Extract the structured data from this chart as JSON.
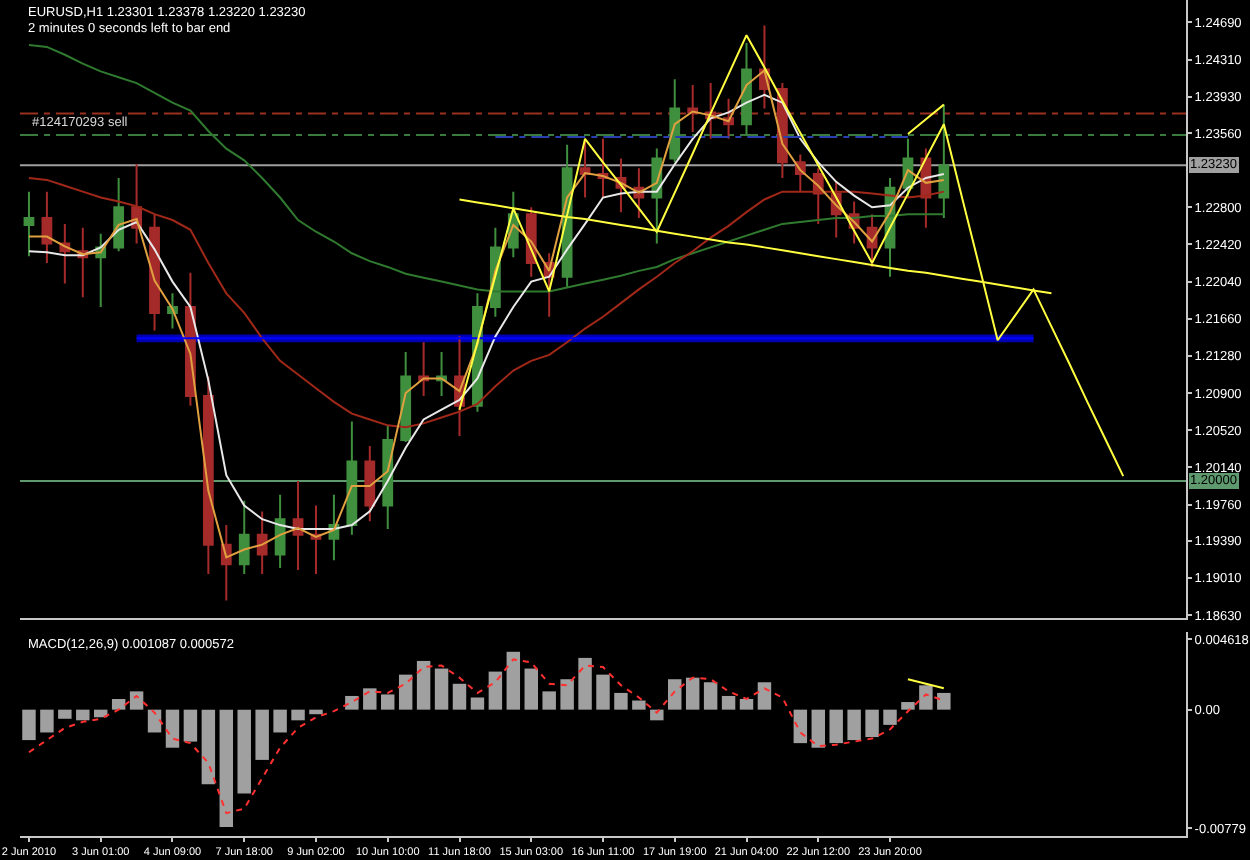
{
  "chart_data": [
    {
      "type": "candlestick",
      "title": "EURUSD,H1 1.23301 1.23378 1.23220 1.23230",
      "annotations": [
        "2 minutes 0 seconds left to bar end"
      ],
      "categories": [
        null,
        null,
        null,
        null,
        null,
        null,
        null,
        null,
        null,
        null,
        null,
        null,
        null,
        null,
        null,
        null,
        null,
        null,
        null,
        null,
        null,
        null,
        null,
        null,
        null,
        null,
        null,
        null,
        null,
        null,
        null,
        null,
        null,
        null,
        null,
        null,
        null,
        null,
        null,
        null,
        null,
        null,
        null,
        null,
        null,
        null,
        null,
        null,
        null,
        null,
        null,
        null,
        null,
        null,
        null,
        null,
        null,
        null,
        null,
        null,
        null,
        null,
        null,
        null,
        null
      ],
      "ohlc": [
        [
          1.2262,
          1.2296,
          1.223,
          1.2269
        ],
        [
          1.2269,
          1.2296,
          1.2223,
          1.2243
        ],
        [
          1.2243,
          1.2263,
          1.2202,
          1.2235
        ],
        [
          1.2235,
          1.2259,
          1.2188,
          1.2229
        ],
        [
          1.2229,
          1.2253,
          1.2178,
          1.2239
        ],
        [
          1.2239,
          1.231,
          1.2235,
          1.228
        ],
        [
          1.228,
          1.2324,
          1.2243,
          1.2259
        ],
        [
          1.2259,
          1.2273,
          1.2154,
          1.2172
        ],
        [
          1.2172,
          1.2192,
          1.2156,
          1.2178
        ],
        [
          1.2178,
          1.2213,
          1.2077,
          1.2087
        ],
        [
          1.2087,
          1.2107,
          1.1905,
          1.1935
        ],
        [
          1.1935,
          1.1955,
          1.1878,
          1.1915
        ],
        [
          1.1915,
          1.198,
          1.1905,
          1.1945
        ],
        [
          1.1945,
          1.1969,
          1.1905,
          1.1925
        ],
        [
          1.1925,
          1.1986,
          1.1911,
          1.1961
        ],
        [
          1.1961,
          1.2,
          1.1909,
          1.1945
        ],
        [
          1.1945,
          1.1975,
          1.1905,
          1.1941
        ],
        [
          1.1941,
          1.1986,
          1.1919,
          1.1955
        ],
        [
          1.1955,
          1.2061,
          1.1945,
          1.202
        ],
        [
          1.202,
          1.2036,
          1.1959,
          1.1975
        ],
        [
          1.1975,
          1.2057,
          1.1951,
          1.2042
        ],
        [
          1.2042,
          1.2132,
          1.204,
          1.2107
        ],
        [
          1.2107,
          1.2142,
          1.2087,
          1.2103
        ],
        [
          1.2103,
          1.2132,
          1.2087,
          1.2107
        ],
        [
          1.2107,
          1.2148,
          1.2046,
          1.2077
        ],
        [
          1.2077,
          1.2192,
          1.2071,
          1.2178
        ],
        [
          1.2178,
          1.2259,
          1.2168,
          1.2239
        ],
        [
          1.2239,
          1.2296,
          1.2229,
          1.2273
        ],
        [
          1.2273,
          1.228,
          1.2209,
          1.2223
        ],
        [
          1.2223,
          1.2233,
          1.2168,
          1.2209
        ],
        [
          1.2209,
          1.2344,
          1.2198,
          1.232
        ],
        [
          1.232,
          1.235,
          1.229,
          1.2314
        ],
        [
          1.2314,
          1.235,
          1.229,
          1.231
        ],
        [
          1.231,
          1.233,
          1.2275,
          1.23
        ],
        [
          1.23,
          1.232,
          1.2269,
          1.229
        ],
        [
          1.229,
          1.234,
          1.2243,
          1.233
        ],
        [
          1.233,
          1.2411,
          1.2326,
          1.2381
        ],
        [
          1.2381,
          1.2405,
          1.2357,
          1.2377
        ],
        [
          1.2377,
          1.2407,
          1.235,
          1.2371
        ],
        [
          1.2371,
          1.2391,
          1.235,
          1.2365
        ],
        [
          1.2365,
          1.2448,
          1.2354,
          1.2421
        ],
        [
          1.2421,
          1.2466,
          1.2381,
          1.2401
        ],
        [
          1.2401,
          1.2407,
          1.231,
          1.2326
        ],
        [
          1.2326,
          1.2334,
          1.2296,
          1.2314
        ],
        [
          1.2314,
          1.232,
          1.2263,
          1.2294
        ],
        [
          1.2294,
          1.2306,
          1.2249,
          1.2273
        ],
        [
          1.2273,
          1.2286,
          1.2243,
          1.2259
        ],
        [
          1.2259,
          1.2273,
          1.2219,
          1.2239
        ],
        [
          1.2239,
          1.231,
          1.2209,
          1.23
        ],
        [
          1.23,
          1.235,
          1.229,
          1.233
        ],
        [
          1.233,
          1.234,
          1.2259,
          1.229
        ],
        [
          1.229,
          1.2385,
          1.2269,
          1.2323
        ],
        null,
        null,
        null,
        null,
        null,
        null,
        null,
        null,
        null,
        null,
        null,
        null,
        null
      ],
      "colors": [
        "#3f8f3f",
        "#a52a2a",
        "#a52a2a",
        "#a52a2a",
        "#3f8f3f",
        "#3f8f3f",
        "#a52a2a",
        "#a52a2a",
        "#3f8f3f",
        "#a52a2a",
        "#a52a2a",
        "#a52a2a",
        "#3f8f3f",
        "#a52a2a",
        "#3f8f3f",
        "#a52a2a",
        "#a52a2a",
        "#3f8f3f",
        "#3f8f3f",
        "#a52a2a",
        "#3f8f3f",
        "#3f8f3f",
        "#a52a2a",
        "#3f8f3f",
        "#a52a2a",
        "#3f8f3f",
        "#3f8f3f",
        "#3f8f3f",
        "#a52a2a",
        "#a52a2a",
        "#3f8f3f",
        "#a52a2a",
        "#a52a2a",
        "#a52a2a",
        "#a52a2a",
        "#3f8f3f",
        "#3f8f3f",
        "#a52a2a",
        "#a52a2a",
        "#a52a2a",
        "#3f8f3f",
        "#a52a2a",
        "#a52a2a",
        "#a52a2a",
        "#a52a2a",
        "#a52a2a",
        "#a52a2a",
        "#a52a2a",
        "#3f8f3f",
        "#3f8f3f",
        "#a52a2a",
        "#3f8f3f",
        null,
        null,
        null,
        null,
        null,
        null,
        null,
        null,
        null,
        null,
        null,
        null,
        null
      ],
      "series": [
        {
          "type": "line",
          "color": "#2f7a2f",
          "values": [
            1.2446,
            1.2444,
            1.2436,
            1.2427,
            1.2419,
            1.2413,
            1.2407,
            1.2397,
            1.2387,
            1.2379,
            1.2358,
            1.234,
            1.2328,
            1.231,
            1.229,
            1.2267,
            1.2255,
            1.2245,
            1.2233,
            1.2225,
            1.2219,
            1.2212,
            1.2208,
            1.2204,
            1.22,
            1.2196,
            1.2194,
            1.2194,
            1.2194,
            1.2194,
            1.2198,
            1.2202,
            1.2206,
            1.221,
            1.2215,
            1.2219,
            1.2227,
            1.2233,
            1.2239,
            1.2245,
            1.2251,
            1.2257,
            1.2263,
            1.2265,
            1.2267,
            1.2269,
            1.2269,
            1.2271,
            1.2271,
            1.2273,
            1.2273,
            1.2273,
            null,
            null,
            null,
            null,
            null,
            null,
            null,
            null,
            null,
            null,
            null,
            null,
            null
          ]
        },
        {
          "type": "line",
          "color": "#a02818",
          "values": [
            1.231,
            1.2308,
            1.2302,
            1.2296,
            1.229,
            1.2286,
            1.2281,
            1.2273,
            1.2267,
            1.2257,
            1.2223,
            1.2192,
            1.2172,
            1.2146,
            1.2123,
            1.2109,
            1.2095,
            1.2081,
            1.2069,
            1.2063,
            1.2057,
            1.2055,
            1.2059,
            1.2065,
            1.2071,
            1.2079,
            1.2097,
            1.2113,
            1.2123,
            1.2129,
            1.2142,
            1.2156,
            1.2168,
            1.2182,
            1.2196,
            1.2209,
            1.2223,
            1.2235,
            1.2249,
            1.2261,
            1.2275,
            1.2288,
            1.2296,
            1.2296,
            1.2296,
            1.2296,
            1.2296,
            1.2294,
            1.2292,
            1.229,
            1.2292,
            1.2296,
            null,
            null,
            null,
            null,
            null,
            null,
            null,
            null,
            null,
            null,
            null,
            null,
            null
          ]
        },
        {
          "type": "line",
          "color": "#e8e8e8",
          "values": [
            1.2235,
            1.2234,
            1.2231,
            1.2231,
            1.2239,
            1.2257,
            1.2265,
            1.2237,
            1.2204,
            1.2178,
            1.2103,
            1.2006,
            1.1975,
            1.1961,
            1.1955,
            1.1951,
            1.1951,
            1.1951,
            1.1955,
            1.1969,
            1.2,
            1.2034,
            1.2063,
            1.2073,
            1.2083,
            1.2105,
            1.2148,
            1.2178,
            1.2204,
            1.2209,
            1.2237,
            1.2263,
            1.229,
            1.2294,
            1.2296,
            1.2296,
            1.2324,
            1.235,
            1.2371,
            1.2377,
            1.2387,
            1.2395,
            1.2387,
            1.235,
            1.2326,
            1.2306,
            1.2292,
            1.228,
            1.2282,
            1.23,
            1.231,
            1.2314,
            null,
            null,
            null,
            null,
            null,
            null,
            null,
            null,
            null,
            null,
            null,
            null,
            null
          ]
        },
        {
          "type": "line",
          "color": "#e0a040",
          "values": [
            1.225,
            1.225,
            1.224,
            1.2232,
            1.2234,
            1.2262,
            1.2268,
            1.2205,
            1.2176,
            1.213,
            1.199,
            1.1922,
            1.193,
            1.1935,
            1.1945,
            1.1952,
            1.1943,
            1.195,
            1.1995,
            1.1995,
            1.201,
            1.209,
            1.2105,
            1.2105,
            1.2092,
            1.214,
            1.2215,
            1.2262,
            1.2245,
            1.2215,
            1.229,
            1.2315,
            1.2312,
            1.2305,
            1.2295,
            1.2305,
            1.2365,
            1.2378,
            1.2374,
            1.2368,
            1.2405,
            1.242,
            1.2345,
            1.2318,
            1.2302,
            1.2282,
            1.2265,
            1.2245,
            1.2275,
            1.2318,
            1.2305,
            1.2308,
            null,
            null,
            null,
            null,
            null,
            null,
            null,
            null,
            null,
            null,
            null,
            null,
            null
          ]
        },
        {
          "type": "line",
          "color": "#0000ff",
          "values": [
            null,
            null,
            null,
            null,
            null,
            null,
            1.2146,
            1.2146,
            1.2146,
            1.2146,
            1.2146,
            1.2146,
            1.2146,
            1.2146,
            1.2146,
            1.2146,
            1.2146,
            1.2146,
            1.2146,
            1.2146,
            1.2146,
            1.2146,
            1.2146,
            1.2146,
            1.2146,
            1.2146,
            1.2146,
            1.2146,
            1.2146,
            1.2146,
            1.2146,
            1.2146,
            1.2146,
            1.2146,
            1.2146,
            1.2146,
            1.2146,
            1.2146,
            1.2146,
            1.2146,
            1.2146,
            1.2146,
            1.2146,
            1.2146,
            1.2146,
            1.2146,
            1.2146,
            1.2146,
            1.2146,
            1.2146,
            1.2146,
            1.2146,
            1.2146,
            1.2146,
            1.2146,
            1.2146,
            1.2146,
            null,
            null,
            null,
            null,
            null,
            null,
            null,
            null
          ],
          "lower": [
            null,
            null,
            null,
            null,
            null,
            null,
            1.2142,
            1.2142,
            1.2142,
            1.2142,
            1.2142,
            1.2142,
            1.2142,
            1.2142,
            1.2142,
            1.2142,
            1.2142,
            1.2142,
            1.2142,
            1.2142,
            1.2142,
            1.2142,
            1.2142,
            1.2142,
            1.2142,
            1.2142,
            1.2142,
            1.2142,
            1.2142,
            1.2142,
            1.2142,
            1.2142,
            1.2142,
            1.2142,
            1.2142,
            1.2142,
            1.2142,
            1.2142,
            1.2142,
            1.2142,
            1.2142,
            1.2142,
            1.2142,
            1.2142,
            1.2142,
            1.2142,
            1.2142,
            1.2142,
            1.2142,
            1.2142,
            1.2142,
            1.2142,
            1.2142,
            1.2142,
            1.2142,
            1.2142,
            1.2142,
            null,
            null,
            null,
            null,
            null,
            null,
            null,
            null
          ],
          "upper": [
            null,
            null,
            null,
            null,
            null,
            null,
            1.215,
            1.215,
            1.215,
            1.215,
            1.215,
            1.215,
            1.215,
            1.215,
            1.215,
            1.215,
            1.215,
            1.215,
            1.215,
            1.215,
            1.215,
            1.215,
            1.215,
            1.215,
            1.215,
            1.215,
            1.215,
            1.215,
            1.215,
            1.215,
            1.215,
            1.215,
            1.215,
            1.215,
            1.215,
            1.215,
            1.215,
            1.215,
            1.215,
            1.215,
            1.215,
            1.215,
            1.215,
            1.215,
            1.215,
            1.215,
            1.215,
            1.215,
            1.215,
            1.215,
            1.215,
            1.215,
            1.215,
            1.215,
            1.215,
            1.215,
            1.215,
            null,
            null,
            null,
            null,
            null,
            null,
            null,
            null
          ]
        },
        {
          "type": "line",
          "color": "#2a3fb0",
          "line_style": "dashed",
          "values": [
            null,
            null,
            null,
            null,
            null,
            null,
            null,
            null,
            null,
            null,
            null,
            null,
            null,
            null,
            null,
            null,
            null,
            null,
            null,
            null,
            null,
            null,
            null,
            null,
            null,
            null,
            1.2352,
            1.2352,
            1.2352,
            1.2352,
            1.2352,
            1.2352,
            1.2352,
            1.2352,
            1.2352,
            1.2352,
            1.2352,
            1.2352,
            1.2352,
            1.2352,
            1.2352,
            1.2352,
            1.2352,
            1.2352,
            1.2352,
            1.2352,
            1.2352,
            1.2352,
            1.2352,
            1.2352,
            null,
            null,
            null,
            null,
            null,
            null,
            null,
            null,
            null,
            null,
            null,
            null,
            null,
            null,
            null
          ]
        },
        {
          "type": "line",
          "color": "#ffff40",
          "values": [
            null,
            null,
            null,
            null,
            null,
            null,
            null,
            null,
            null,
            null,
            null,
            null,
            null,
            null,
            null,
            null,
            null,
            null,
            null,
            null,
            null,
            null,
            null,
            null,
            1.2288,
            1.2285,
            1.2282,
            1.2279,
            1.2276,
            1.2273,
            1.227,
            1.2268,
            1.2265,
            1.2262,
            1.2259,
            1.2256,
            1.2253,
            1.225,
            1.2247,
            1.2244,
            1.2242,
            1.2239,
            1.2236,
            1.2233,
            1.223,
            1.2227,
            1.2224,
            1.2221,
            1.2218,
            1.2215,
            1.2213,
            1.221,
            1.2207,
            1.2204,
            1.2201,
            1.2198,
            1.2195,
            1.2192,
            null,
            null,
            null,
            null,
            null,
            null,
            null
          ]
        },
        {
          "type": "line",
          "color": "#ffff40",
          "values": [
            null,
            null,
            null,
            null,
            null,
            null,
            null,
            null,
            null,
            null,
            null,
            null,
            null,
            null,
            null,
            null,
            null,
            null,
            null,
            null,
            null,
            null,
            null,
            null,
            1.2073,
            1.2142,
            1.221,
            1.2279,
            1.2237,
            1.2194,
            1.2272,
            1.235,
            1.2326,
            1.2303,
            1.2279,
            1.2255,
            1.2295,
            1.2335,
            1.2376,
            1.2416,
            1.2456,
            1.2423,
            1.2389,
            1.2356,
            1.2323,
            1.229,
            1.2256,
            1.2223,
            1.2259,
            1.2294,
            1.233,
            1.2365,
            1.2291,
            1.2218,
            1.2144,
            1.217,
            1.2196,
            1.2158,
            1.212,
            1.2081,
            1.2043,
            1.2005,
            null,
            null,
            null
          ]
        },
        {
          "type": "line",
          "color": "#ffff40",
          "values": [
            null,
            null,
            null,
            null,
            null,
            null,
            null,
            null,
            null,
            null,
            null,
            null,
            null,
            null,
            null,
            null,
            null,
            null,
            null,
            null,
            null,
            null,
            null,
            null,
            null,
            null,
            null,
            null,
            null,
            null,
            null,
            null,
            null,
            null,
            null,
            null,
            null,
            null,
            null,
            null,
            null,
            null,
            null,
            null,
            null,
            null,
            null,
            null,
            null,
            1.2355,
            1.237,
            1.2385,
            null,
            null,
            null,
            null,
            null,
            null,
            null,
            null,
            null,
            null,
            null,
            null,
            null
          ]
        }
      ],
      "ref_lines": [
        {
          "axis": "y",
          "value": 1.2376,
          "color": "#9a3020",
          "line_style": "dashed"
        },
        {
          "axis": "y",
          "value": 1.2354,
          "color": "#3a7a3a",
          "line_style": "dashed",
          "label": "#124170293 sell"
        },
        {
          "axis": "y",
          "value": 1.2323,
          "color": "#a0a0a0",
          "label": "1.23230"
        },
        {
          "axis": "y",
          "value": 1.2,
          "color": "#5e9a6e",
          "label": "1.20000"
        }
      ],
      "ylim": [
        1.186,
        1.2492
      ],
      "yticks": [
        {
          "value": 1.2469,
          "label": "1.24690"
        },
        {
          "value": 1.2431,
          "label": "1.24310"
        },
        {
          "value": 1.2393,
          "label": "1.23930"
        },
        {
          "value": 1.2356,
          "label": "1.23560"
        },
        {
          "value": 1.228,
          "label": "1.22800"
        },
        {
          "value": 1.2242,
          "label": "1.22420"
        },
        {
          "value": 1.2204,
          "label": "1.22040"
        },
        {
          "value": 1.2166,
          "label": "1.21660"
        },
        {
          "value": 1.2128,
          "label": "1.21280"
        },
        {
          "value": 1.209,
          "label": "1.20900"
        },
        {
          "value": 1.2052,
          "label": "1.20520"
        },
        {
          "value": 1.2014,
          "label": "1.20140"
        },
        {
          "value": 1.1976,
          "label": "1.19760"
        },
        {
          "value": 1.1939,
          "label": "1.19390"
        },
        {
          "value": 1.1901,
          "label": "1.19010"
        },
        {
          "value": 1.1863,
          "label": "1.18630"
        }
      ],
      "tick_labels": "y"
    },
    {
      "type": "bar",
      "title": "MACD(12,26,9) 0.001087 0.000572",
      "categories": [
        "2 Jun 2010",
        null,
        null,
        null,
        "3 Jun 01:00",
        null,
        null,
        null,
        "4 Jun 09:00",
        null,
        null,
        null,
        "7 Jun 18:00",
        null,
        null,
        null,
        "9 Jun 02:00",
        null,
        null,
        null,
        "10 Jun 10:00",
        null,
        null,
        null,
        "11 Jun 18:00",
        null,
        null,
        null,
        "15 Jun 03:00",
        null,
        null,
        null,
        "16 Jun 11:00",
        null,
        null,
        null,
        "17 Jun 19:00",
        null,
        null,
        null,
        "21 Jun 04:00",
        null,
        null,
        null,
        "22 Jun 12:00",
        null,
        null,
        null,
        "23 Jun 20:00",
        null,
        null,
        null,
        null,
        null,
        null,
        null,
        null,
        null,
        null,
        null,
        null,
        null,
        null,
        null,
        null
      ],
      "series": [
        {
          "type": "bar",
          "color": "#a0a0a0",
          "values": [
            -0.002,
            -0.0015,
            -0.0006,
            -0.0007,
            -0.0005,
            0.0007,
            0.0012,
            -0.0015,
            -0.0025,
            -0.0021,
            -0.0049,
            -0.0077,
            -0.0055,
            -0.0033,
            -0.0015,
            -0.0007,
            -0.0003,
            0.0,
            0.0009,
            0.0014,
            0.001,
            0.0023,
            0.0032,
            0.0027,
            0.0017,
            0.0008,
            0.0025,
            0.0038,
            0.0027,
            0.0012,
            0.002,
            0.0034,
            0.0023,
            0.0011,
            0.0006,
            -0.0007,
            0.002,
            0.0021,
            0.0018,
            0.0009,
            0.0007,
            0.0018,
            0.0,
            -0.0022,
            -0.0025,
            -0.0022,
            -0.002,
            -0.0018,
            -0.001,
            0.0005,
            0.0016,
            0.0011,
            null,
            null,
            null,
            null,
            null,
            null,
            null,
            null,
            null,
            null,
            null,
            null,
            null
          ]
        },
        {
          "type": "line",
          "color": "#ff3030",
          "line_style": "dotted",
          "values": [
            -0.0028,
            -0.002,
            -0.0012,
            -0.0008,
            -0.0006,
            0.0,
            0.0009,
            -0.0002,
            -0.0019,
            -0.0022,
            -0.0035,
            -0.0068,
            -0.0065,
            -0.0045,
            -0.0025,
            -0.0012,
            -0.0005,
            -0.0001,
            0.0005,
            0.0012,
            0.0011,
            0.0017,
            0.0028,
            0.0029,
            0.0021,
            0.0011,
            0.0018,
            0.0033,
            0.0031,
            0.0017,
            0.0016,
            0.0029,
            0.0028,
            0.0016,
            0.0008,
            -0.0002,
            0.0012,
            0.0021,
            0.002,
            0.0012,
            0.0007,
            0.0014,
            0.0008,
            -0.0015,
            -0.0024,
            -0.0023,
            -0.0021,
            -0.0019,
            -0.0013,
            -0.0001,
            0.001,
            0.0006,
            null,
            null,
            null,
            null,
            null,
            null,
            null,
            null,
            null,
            null,
            null,
            null,
            null
          ]
        },
        {
          "type": "line",
          "color": "#ffff40",
          "values": [
            null,
            null,
            null,
            null,
            null,
            null,
            null,
            null,
            null,
            null,
            null,
            null,
            null,
            null,
            null,
            null,
            null,
            null,
            null,
            null,
            null,
            null,
            null,
            null,
            null,
            null,
            null,
            null,
            null,
            null,
            null,
            null,
            null,
            null,
            null,
            null,
            null,
            null,
            null,
            null,
            null,
            null,
            null,
            null,
            null,
            null,
            null,
            null,
            null,
            0.002,
            0.0017,
            0.0014,
            null,
            null,
            null,
            null,
            null,
            null,
            null,
            null,
            null,
            null,
            null,
            null,
            null
          ]
        }
      ],
      "ylim": [
        -0.0083,
        0.0051
      ],
      "yticks": [
        {
          "value": 0.004618,
          "label": "0.004618"
        },
        {
          "value": 0,
          "label": "0.00"
        },
        {
          "value": -0.00779,
          "label": "-0.00779"
        }
      ]
    }
  ]
}
